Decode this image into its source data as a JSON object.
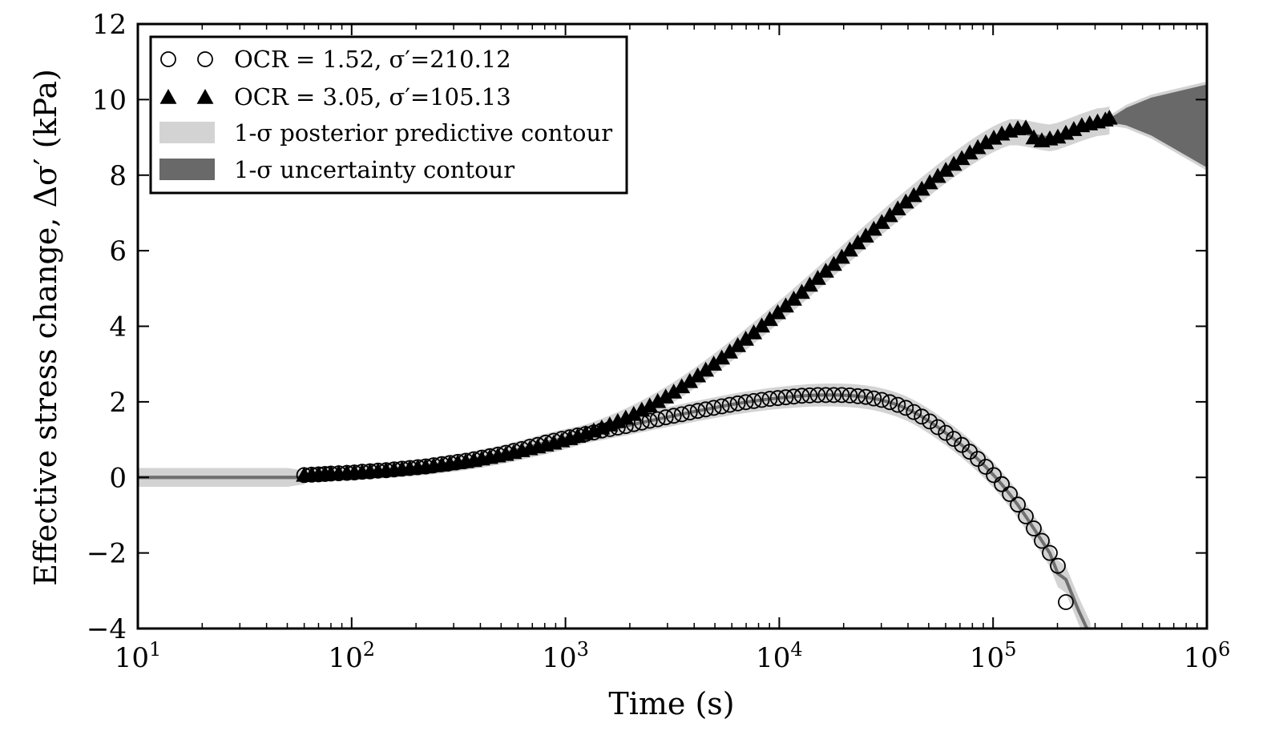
{
  "chart_data": {
    "type": "scatter",
    "xlabel": "Time (s)",
    "ylabel": "Effective stress change, Δσ′ (kPa)",
    "xscale": "log",
    "xlim": [
      10,
      1000000
    ],
    "ylim": [
      -4,
      12
    ],
    "x_ticks": [
      {
        "base": "10",
        "exp": "1"
      },
      {
        "base": "10",
        "exp": "2"
      },
      {
        "base": "10",
        "exp": "3"
      },
      {
        "base": "10",
        "exp": "4"
      },
      {
        "base": "10",
        "exp": "5"
      },
      {
        "base": "10",
        "exp": "6"
      }
    ],
    "y_ticks": [
      "−4",
      "−2",
      "0",
      "2",
      "4",
      "6",
      "8",
      "10",
      "12"
    ],
    "grid": false,
    "legend_position": "top-left",
    "legend": [
      {
        "label": "OCR = 1.52, σ′=210.12",
        "marker": "circle"
      },
      {
        "label": "OCR = 3.05, σ′=105.13",
        "marker": "triangle"
      },
      {
        "label": "1-σ posterior predictive contour",
        "marker": "band-light"
      },
      {
        "label": "1-σ uncertainty contour",
        "marker": "band-dark"
      }
    ],
    "colors": {
      "posterior_band": "#d3d3d3",
      "uncertainty_band": "#696969",
      "mean_line": "#707070",
      "markers": "#000000"
    },
    "series": [
      {
        "marker": "circle",
        "x": [
          60,
          65,
          70,
          75,
          80,
          87,
          95,
          103,
          112,
          122,
          133,
          145,
          158,
          172,
          187,
          204,
          222,
          242,
          264,
          288,
          314,
          342,
          373,
          406,
          443,
          483,
          526,
          573,
          625,
          681,
          742,
          809,
          882,
          961,
          1047,
          1141,
          1244,
          1356,
          1478,
          1611,
          1756,
          1914,
          2086,
          2274,
          2478,
          2701,
          2944,
          3209,
          3498,
          3813,
          4156,
          4530,
          4938,
          5382,
          5866,
          6394,
          6970,
          7597,
          8281,
          9026,
          9838,
          10723,
          11688,
          12740,
          13887,
          15136,
          16499,
          17984,
          19602,
          21366,
          23289,
          25385,
          27670,
          30160,
          32874,
          35833,
          39058,
          42573,
          46404,
          50580,
          55132,
          60094,
          65502,
          71398,
          77823,
          84827,
          92462,
          100783,
          109854,
          119741,
          130517,
          142264,
          155067,
          169024,
          184236,
          200817,
          218890
        ],
        "y": [
          0.06,
          0.07,
          0.08,
          0.09,
          0.1,
          0.11,
          0.12,
          0.13,
          0.15,
          0.16,
          0.18,
          0.19,
          0.21,
          0.23,
          0.25,
          0.27,
          0.29,
          0.32,
          0.35,
          0.38,
          0.41,
          0.44,
          0.48,
          0.52,
          0.56,
          0.6,
          0.65,
          0.7,
          0.75,
          0.81,
          0.86,
          0.92,
          0.97,
          1.02,
          1.06,
          1.11,
          1.15,
          1.19,
          1.24,
          1.28,
          1.32,
          1.36,
          1.41,
          1.45,
          1.5,
          1.54,
          1.59,
          1.63,
          1.67,
          1.72,
          1.76,
          1.8,
          1.84,
          1.88,
          1.92,
          1.96,
          1.99,
          2.02,
          2.05,
          2.08,
          2.1,
          2.12,
          2.14,
          2.16,
          2.17,
          2.18,
          2.18,
          2.18,
          2.18,
          2.17,
          2.15,
          2.13,
          2.09,
          2.05,
          1.99,
          1.92,
          1.84,
          1.73,
          1.61,
          1.48,
          1.33,
          1.18,
          1.02,
          0.86,
          0.68,
          0.49,
          0.28,
          0.06,
          -0.18,
          -0.44,
          -0.72,
          -1.03,
          -1.35,
          -1.68,
          -2.0,
          -2.34,
          -3.3
        ]
      },
      {
        "marker": "triangle",
        "x": [
          60,
          65,
          70,
          75,
          80,
          87,
          95,
          103,
          112,
          122,
          133,
          145,
          158,
          172,
          187,
          204,
          222,
          242,
          264,
          288,
          314,
          342,
          373,
          406,
          443,
          483,
          526,
          573,
          625,
          681,
          742,
          809,
          882,
          961,
          1047,
          1141,
          1244,
          1356,
          1478,
          1611,
          1756,
          1914,
          2086,
          2274,
          2478,
          2701,
          2944,
          3209,
          3498,
          3813,
          4156,
          4530,
          4938,
          5382,
          5866,
          6394,
          6970,
          7597,
          8281,
          9026,
          9838,
          10723,
          11688,
          12740,
          13887,
          15136,
          16499,
          17984,
          19602,
          21366,
          23289,
          25385,
          27670,
          30160,
          32874,
          35833,
          39058,
          42573,
          46404,
          50580,
          55132,
          60094,
          65502,
          71398,
          77823,
          84827,
          92462,
          100783,
          109854,
          119741,
          130517,
          142264,
          155067,
          169024,
          184236,
          200817,
          218890,
          238590,
          260000,
          283000,
          308000,
          335000,
          350000
        ],
        "y": [
          0.05,
          0.06,
          0.07,
          0.08,
          0.09,
          0.1,
          0.11,
          0.12,
          0.13,
          0.15,
          0.16,
          0.18,
          0.19,
          0.21,
          0.23,
          0.25,
          0.27,
          0.3,
          0.32,
          0.35,
          0.38,
          0.41,
          0.44,
          0.48,
          0.52,
          0.56,
          0.6,
          0.65,
          0.7,
          0.75,
          0.8,
          0.85,
          0.9,
          0.96,
          1.02,
          1.08,
          1.15,
          1.22,
          1.3,
          1.38,
          1.47,
          1.56,
          1.66,
          1.77,
          1.88,
          2.0,
          2.12,
          2.25,
          2.39,
          2.53,
          2.68,
          2.83,
          2.99,
          3.15,
          3.31,
          3.48,
          3.65,
          3.82,
          4.0,
          4.17,
          4.35,
          4.53,
          4.71,
          4.89,
          5.08,
          5.26,
          5.45,
          5.63,
          5.82,
          6.01,
          6.2,
          6.38,
          6.56,
          6.74,
          6.92,
          7.1,
          7.28,
          7.45,
          7.62,
          7.79,
          7.96,
          8.12,
          8.28,
          8.43,
          8.58,
          8.72,
          8.85,
          8.97,
          9.08,
          9.16,
          9.22,
          9.24,
          8.98,
          8.9,
          8.95,
          9.0,
          9.1,
          9.2,
          9.3,
          9.35,
          9.4,
          9.45,
          9.5
        ]
      }
    ]
  }
}
